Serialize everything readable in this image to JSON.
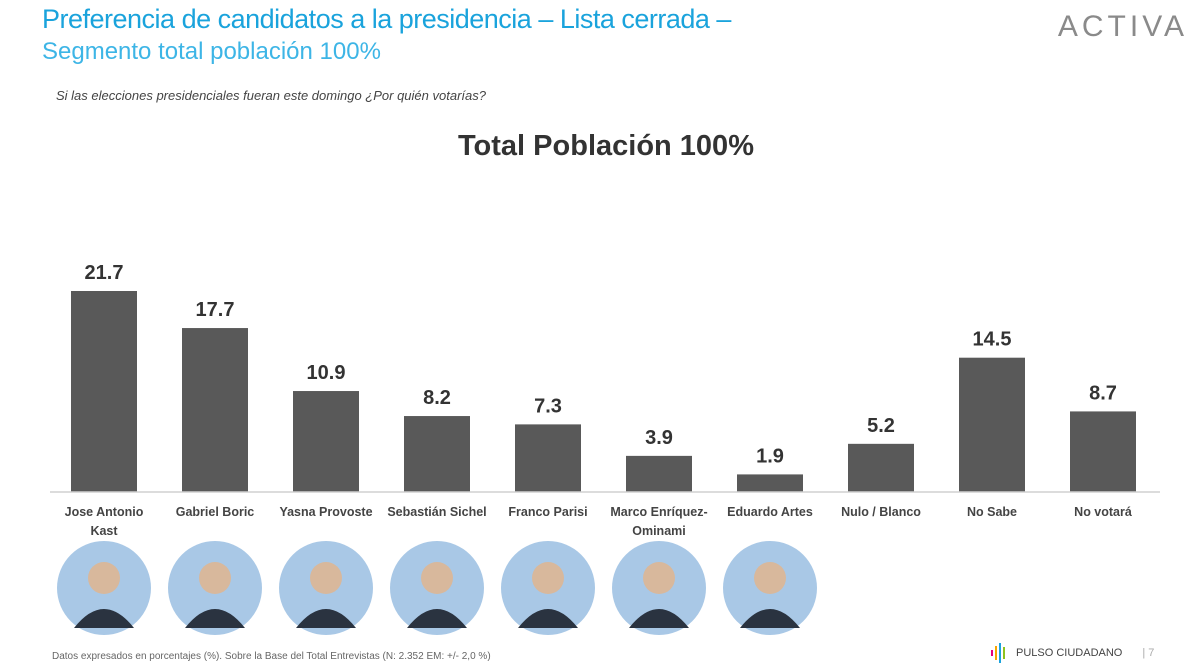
{
  "header": {
    "title": "Preferencia de candidatos a la presidencia – Lista cerrada –",
    "subtitle": "Segmento total población 100%",
    "logo": "ACTIVA"
  },
  "question": "Si las elecciones presidenciales fueran este domingo ¿Por quién votarías?",
  "chart_data": {
    "type": "bar",
    "title": "Total Población 100%",
    "categories": [
      "Jose Antonio Kast",
      "Gabriel Boric",
      "Yasna Provoste",
      "Sebastián Sichel",
      "Franco Parisi",
      "Marco Enríquez-Ominami",
      "Eduardo Artes",
      "Nulo / Blanco",
      "No Sabe",
      "No votará"
    ],
    "values": [
      21.7,
      17.7,
      10.9,
      8.2,
      7.3,
      3.9,
      1.9,
      5.2,
      14.5,
      8.7
    ],
    "ylim": [
      0,
      21.7
    ],
    "grid": false,
    "bar_color": "#595959"
  },
  "photos": [
    "Jose Antonio Kast",
    "Gabriel Boric",
    "Yasna Provoste",
    "Sebastián Sichel",
    "Franco Parisi",
    "Marco Enríquez-Ominami",
    "Eduardo Artes"
  ],
  "footer": {
    "note": "Datos expresados en porcentajes (%). Sobre la Base del Total Entrevistas (N: 2.352  EM: +/- 2,0 %)",
    "brand": "PULSO CIUDADANO",
    "page": "7"
  }
}
